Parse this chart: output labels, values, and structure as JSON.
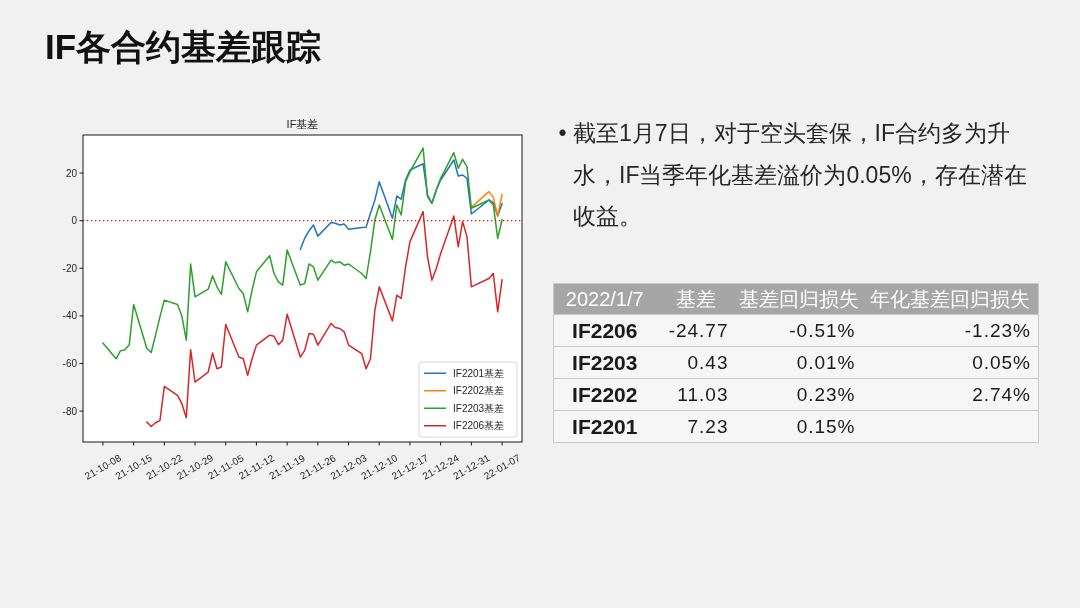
{
  "chart_data": [
    {
      "type": "other",
      "title": "IF各合约基差跟踪"
    },
    {
      "type": "line",
      "title": "IF基差",
      "x": [
        "2021-10-08",
        "2021-10-11",
        "2021-10-12",
        "2021-10-13",
        "2021-10-14",
        "2021-10-15",
        "2021-10-18",
        "2021-10-19",
        "2021-10-20",
        "2021-10-21",
        "2021-10-22",
        "2021-10-25",
        "2021-10-26",
        "2021-10-27",
        "2021-10-28",
        "2021-10-29",
        "2021-11-01",
        "2021-11-02",
        "2021-11-03",
        "2021-11-04",
        "2021-11-05",
        "2021-11-08",
        "2021-11-09",
        "2021-11-10",
        "2021-11-11",
        "2021-11-12",
        "2021-11-15",
        "2021-11-16",
        "2021-11-17",
        "2021-11-18",
        "2021-11-19",
        "2021-11-22",
        "2021-11-23",
        "2021-11-24",
        "2021-11-25",
        "2021-11-26",
        "2021-11-29",
        "2021-11-30",
        "2021-12-01",
        "2021-12-02",
        "2021-12-03",
        "2021-12-06",
        "2021-12-07",
        "2021-12-08",
        "2021-12-09",
        "2021-12-10",
        "2021-12-13",
        "2021-12-14",
        "2021-12-15",
        "2021-12-16",
        "2021-12-17",
        "2021-12-20",
        "2021-12-21",
        "2021-12-22",
        "2021-12-23",
        "2021-12-24",
        "2021-12-27",
        "2021-12-28",
        "2021-12-29",
        "2021-12-30",
        "2021-12-31",
        "2022-01-04",
        "2022-01-05",
        "2022-01-06",
        "2022-01-07"
      ],
      "series": [
        {
          "name": "IF2201基差",
          "color": "#1f77b4",
          "values": [
            null,
            null,
            null,
            null,
            null,
            null,
            null,
            null,
            null,
            null,
            null,
            null,
            null,
            null,
            null,
            null,
            null,
            null,
            null,
            null,
            null,
            null,
            null,
            null,
            null,
            null,
            null,
            null,
            null,
            null,
            null,
            -12.1,
            -7.4,
            -4.2,
            -1.8,
            -6.5,
            -0.8,
            -1.1,
            -1.8,
            -1.4,
            -3.6,
            -2.9,
            -2.8,
            3.1,
            8.7,
            16.4,
            1.0,
            10.4,
            9.0,
            17.1,
            21.3,
            23.9,
            10.8,
            7.3,
            12.9,
            17.1,
            25.5,
            18.8,
            19.2,
            17.8,
            2.8,
            8.7,
            7.6,
            2.0,
            7.2
          ]
        },
        {
          "name": "IF2202基差",
          "color": "#ff7f0e",
          "values": [
            null,
            null,
            null,
            null,
            null,
            null,
            null,
            null,
            null,
            null,
            null,
            null,
            null,
            null,
            null,
            null,
            null,
            null,
            null,
            null,
            null,
            null,
            null,
            null,
            null,
            null,
            null,
            null,
            null,
            null,
            null,
            null,
            null,
            null,
            null,
            null,
            null,
            null,
            null,
            null,
            null,
            null,
            null,
            null,
            null,
            null,
            null,
            null,
            null,
            null,
            null,
            null,
            null,
            null,
            null,
            null,
            null,
            null,
            null,
            null,
            5.6,
            12.2,
            9.8,
            2.0,
            11.0
          ]
        },
        {
          "name": "IF2203基差",
          "color": "#2ca02c",
          "values": [
            -51.4,
            -58.0,
            -54.7,
            -54.2,
            -52.1,
            -35.2,
            -53.6,
            -55.4,
            -48.1,
            -40.4,
            -33.4,
            -35.2,
            -40.1,
            -50.2,
            -18.2,
            -32.0,
            -28.8,
            -23.2,
            -27.8,
            -31.0,
            -17.3,
            -28.5,
            -30.6,
            -38.3,
            -29.2,
            -21.5,
            -14.7,
            -22.2,
            -25.7,
            -27.1,
            -12.3,
            -27.1,
            -26.4,
            -18.2,
            -19.4,
            -25.0,
            -16.6,
            -17.7,
            -17.3,
            -18.7,
            -18.2,
            -22.2,
            -24.3,
            -13.0,
            0.3,
            6.6,
            -7.9,
            6.6,
            2.4,
            16.4,
            20.6,
            30.5,
            10.1,
            7.3,
            12.9,
            17.8,
            28.6,
            22.0,
            25.8,
            22.7,
            5.2,
            8.7,
            6.6,
            -7.4,
            0.4
          ]
        },
        {
          "name": "IF2206基差",
          "color": "#d62728",
          "values": [
            null,
            null,
            null,
            null,
            null,
            null,
            -84.6,
            -86.5,
            -84.9,
            -83.9,
            -69.6,
            -73.4,
            -76.9,
            -82.8,
            -54.2,
            -67.8,
            -63.6,
            -55.6,
            -62.2,
            -61.5,
            -43.6,
            -57.3,
            -58.0,
            -65.0,
            -58.0,
            -52.3,
            -48.1,
            -48.6,
            -52.1,
            -50.2,
            -39.3,
            -57.3,
            -54.5,
            -47.4,
            -47.7,
            -52.3,
            -43.2,
            -44.9,
            -45.3,
            -46.7,
            -52.3,
            -55.9,
            -62.2,
            -58.0,
            -37.6,
            -27.8,
            -42.1,
            -31.3,
            -32.7,
            -19.4,
            -8.8,
            3.8,
            -15.2,
            -25.0,
            -20.1,
            -13.8,
            2.0,
            -11.0,
            -0.4,
            -6.7,
            -27.8,
            -24.3,
            -22.2,
            -38.3,
            -24.8
          ]
        }
      ],
      "xlim": [
        "2021-10-03T11:00",
        "2022-01-11T13:00"
      ],
      "ylim": [
        -93,
        36
      ],
      "xticks": [
        {
          "value": "2021-10-08",
          "label": "21-10-08"
        },
        {
          "value": "2021-10-15",
          "label": "21-10-15"
        },
        {
          "value": "2021-10-22",
          "label": "21-10-22"
        },
        {
          "value": "2021-10-29",
          "label": "21-10-29"
        },
        {
          "value": "2021-11-05",
          "label": "21-11-05"
        },
        {
          "value": "2021-11-12",
          "label": "21-11-12"
        },
        {
          "value": "2021-11-19",
          "label": "21-11-19"
        },
        {
          "value": "2021-11-26",
          "label": "21-11-26"
        },
        {
          "value": "2021-12-03",
          "label": "21-12-03"
        },
        {
          "value": "2021-12-10",
          "label": "21-12-10"
        },
        {
          "value": "2021-12-17",
          "label": "21-12-17"
        },
        {
          "value": "2021-12-24",
          "label": "21-12-24"
        },
        {
          "value": "2021-12-31",
          "label": "21-12-31"
        },
        {
          "value": "2022-01-07",
          "label": "22-01-07"
        }
      ],
      "yticks": [
        -80,
        -60,
        -40,
        -20,
        0,
        20
      ],
      "ref_lines": [
        {
          "axis": "y",
          "value": 0,
          "color": "#ff0000",
          "line_style": "dotted"
        }
      ],
      "line_style": "solid",
      "legend": "bottom right"
    },
    {
      "type": "other",
      "annotations": [
        "• 截至1月7日，对于空头套保，IF合约多为升水，IF当季年化基差溢价为0.05%，存在潜在收益。"
      ]
    },
    {
      "type": "other",
      "ylabel": "2022/1/7",
      "categories": [
        "基差",
        "基差回归损失",
        "年化基差回归损失"
      ],
      "y_categories": [
        "IF2206",
        "IF2203",
        "IF2202",
        "IF2201"
      ],
      "cell_labels": [
        [
          "-24.77",
          "-0.51%",
          "-1.23%"
        ],
        [
          "0.43",
          "0.01%",
          "0.05%"
        ],
        [
          "11.03",
          "0.23%",
          "2.74%"
        ],
        [
          "7.23",
          "0.15%",
          null
        ]
      ]
    }
  ]
}
